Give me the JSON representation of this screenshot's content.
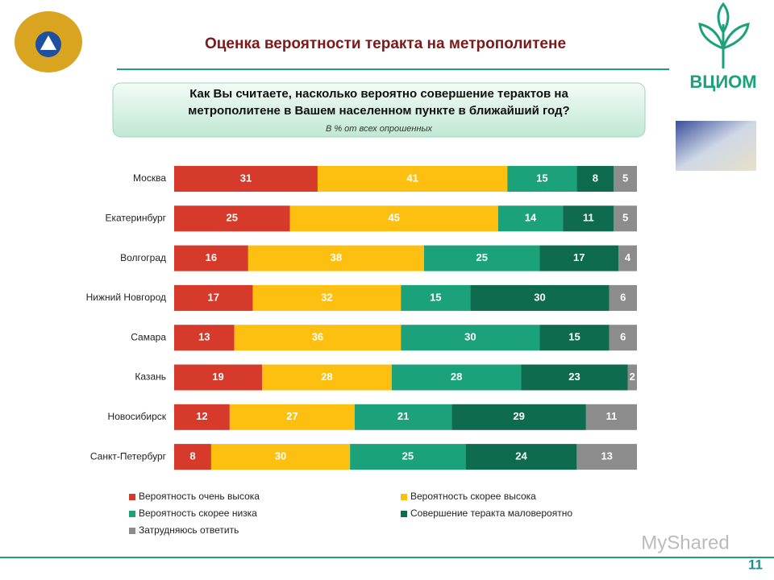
{
  "chart_data": {
    "type": "stacked-barh",
    "title": "Оценка вероятности теракта на метрополитене",
    "question": "Как Вы считаете, насколько вероятно совершение терактов на метрополитене в Вашем населенном пункте в ближайший год?",
    "subtitle": "В % от всех опрошенных",
    "categories": [
      "Москва",
      "Екатеринбург",
      "Волгоград",
      "Нижний Новгород",
      "Самара",
      "Казань",
      "Новосибирск",
      "Санкт-Петербург"
    ],
    "xlim": [
      0,
      100
    ],
    "series": [
      {
        "name": "Вероятность очень высока",
        "color": "#d63a2a",
        "values": [
          31,
          25,
          16,
          17,
          13,
          19,
          12,
          8
        ]
      },
      {
        "name": "Вероятность скорее высока",
        "color": "#fdc010",
        "values": [
          41,
          45,
          38,
          32,
          36,
          28,
          27,
          30
        ]
      },
      {
        "name": "Вероятность скорее низка",
        "color": "#1ca27a",
        "values": [
          15,
          14,
          25,
          15,
          30,
          28,
          21,
          25
        ]
      },
      {
        "name": "Совершение теракта маловероятно",
        "color": "#0e6b4e",
        "values": [
          8,
          11,
          17,
          30,
          15,
          23,
          29,
          24
        ]
      },
      {
        "name": "Затрудняюсь ответить",
        "color": "#8c8c8c",
        "values": [
          5,
          5,
          4,
          6,
          6,
          2,
          11,
          13
        ]
      }
    ]
  },
  "slide": {
    "logo_text": "ВЦИОМ",
    "watermark": "MyShared",
    "page_number": "11"
  }
}
